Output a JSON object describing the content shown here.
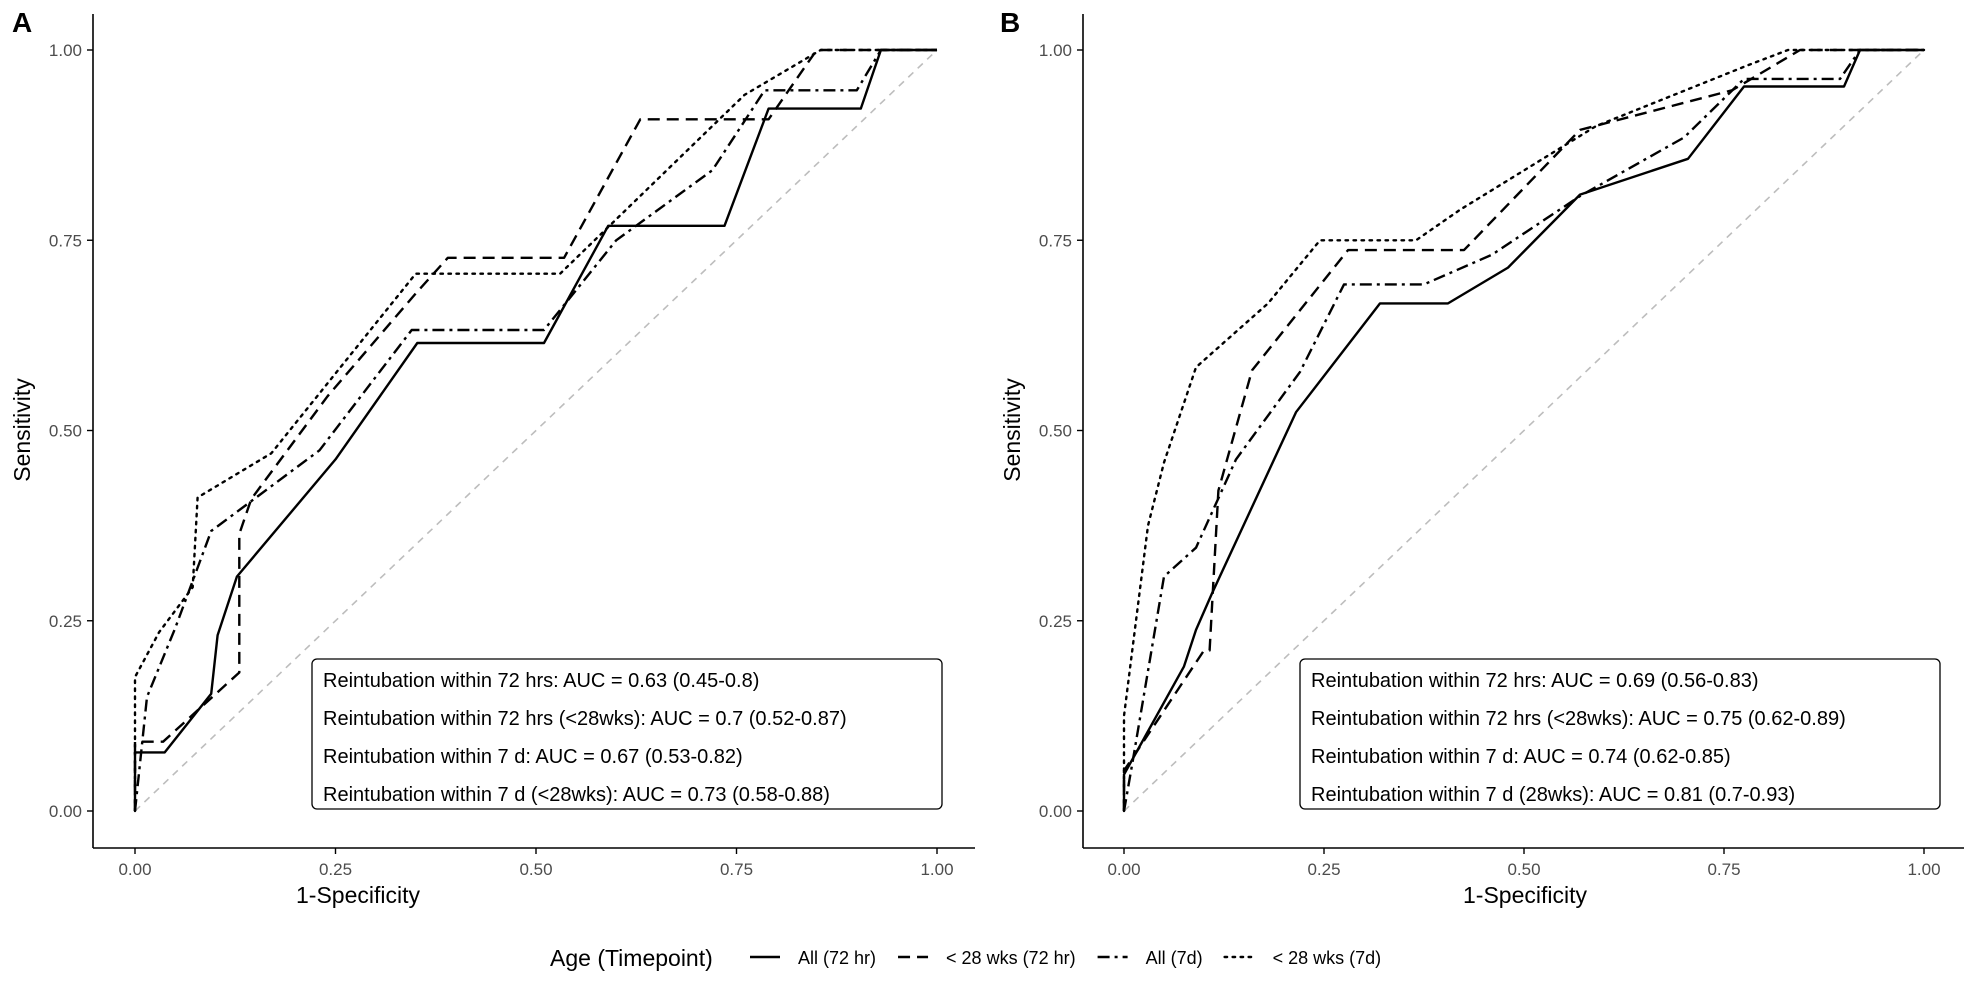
{
  "legend": {
    "title": "Age (Timepoint)",
    "items": [
      {
        "label": "All (72 hr)",
        "dash": "solid"
      },
      {
        "label": "< 28 wks (72 hr)",
        "dash": "dashed"
      },
      {
        "label": "All (7d)",
        "dash": "dashdot"
      },
      {
        "label": "< 28 wks (7d)",
        "dash": "dotted"
      }
    ]
  },
  "colors": {
    "lines": "#000000",
    "reference": "#bdbdbd",
    "axis": "#000000",
    "tick_text": "#4d4d4d"
  },
  "chart_data": [
    {
      "panel": "A",
      "type": "line",
      "xlabel": "1-Specificity",
      "ylabel": "Sensitivity",
      "xlim": [
        0,
        1
      ],
      "ylim": [
        0,
        1
      ],
      "xticks": [
        "0.00",
        "0.25",
        "0.50",
        "0.75",
        "1.00"
      ],
      "yticks": [
        "0.00",
        "0.25",
        "0.50",
        "0.75",
        "1.00"
      ],
      "grid": false,
      "reference_line": [
        [
          0,
          0
        ],
        [
          1,
          1
        ]
      ],
      "legend_box": [
        "Reintubation within 72 hrs: AUC = 0.63 (0.45-0.8)",
        "Reintubation within 72 hrs (<28wks): AUC = 0.7 (0.52-0.87)",
        "Reintubation within 7 d: AUC = 0.67 (0.53-0.82)",
        "Reintubation within 7 d (<28wks): AUC = 0.73 (0.58-0.88)"
      ],
      "series": [
        {
          "name": "All (72 hr)",
          "dash": "solid",
          "x": [
            0,
            0,
            0.037,
            0.095,
            0.103,
            0.127,
            0.25,
            0.352,
            0.51,
            0.59,
            0.735,
            0.79,
            0.905,
            0.93,
            1.0
          ],
          "y": [
            0,
            0.077,
            0.077,
            0.154,
            0.231,
            0.308,
            0.462,
            0.615,
            0.615,
            0.769,
            0.769,
            0.923,
            0.923,
            1.0,
            1.0
          ]
        },
        {
          "name": "< 28 wks (72 hr)",
          "dash": "dashed",
          "x": [
            0,
            0,
            0.035,
            0.13,
            0.13,
            0.145,
            0.24,
            0.35,
            0.39,
            0.535,
            0.63,
            0.79,
            0.85,
            0.89,
            1.0
          ],
          "y": [
            0,
            0.091,
            0.091,
            0.182,
            0.364,
            0.41,
            0.545,
            0.68,
            0.727,
            0.727,
            0.909,
            0.909,
            1.0,
            1.0,
            1.0
          ]
        },
        {
          "name": "All (7d)",
          "dash": "dashdot",
          "x": [
            0,
            0.015,
            0.05,
            0.095,
            0.23,
            0.345,
            0.51,
            0.6,
            0.72,
            0.785,
            0.805,
            0.9,
            0.93,
            1.0
          ],
          "y": [
            0,
            0.15,
            0.24,
            0.368,
            0.474,
            0.632,
            0.632,
            0.75,
            0.842,
            0.947,
            0.947,
            0.947,
            1.0,
            1.0
          ]
        },
        {
          "name": "< 28 wks (7d)",
          "dash": "dotted",
          "x": [
            0,
            0,
            0.03,
            0.072,
            0.078,
            0.17,
            0.35,
            0.53,
            0.76,
            0.855,
            1.0
          ],
          "y": [
            0,
            0.176,
            0.235,
            0.294,
            0.412,
            0.47,
            0.706,
            0.706,
            0.941,
            1.0,
            1.0
          ]
        }
      ]
    },
    {
      "panel": "B",
      "type": "line",
      "xlabel": "1-Specificity",
      "ylabel": "Sensitivity",
      "xlim": [
        0,
        1
      ],
      "ylim": [
        0,
        1
      ],
      "xticks": [
        "0.00",
        "0.25",
        "0.50",
        "0.75",
        "1.00"
      ],
      "yticks": [
        "0.00",
        "0.25",
        "0.50",
        "0.75",
        "1.00"
      ],
      "grid": false,
      "reference_line": [
        [
          0,
          0
        ],
        [
          1,
          1
        ]
      ],
      "legend_box": [
        "Reintubation within 72 hrs: AUC = 0.69 (0.56-0.83)",
        "Reintubation within 72 hrs (<28wks): AUC = 0.75 (0.62-0.89)",
        "Reintubation within 7 d: AUC = 0.74 (0.62-0.85)",
        "Reintubation within 7 d (28wks): AUC = 0.81 (0.7-0.93)"
      ],
      "series": [
        {
          "name": "All (72 hr)",
          "dash": "solid",
          "x": [
            0,
            0,
            0.075,
            0.09,
            0.11,
            0.215,
            0.32,
            0.405,
            0.48,
            0.57,
            0.705,
            0.775,
            0.9,
            0.92,
            1.0
          ],
          "y": [
            0,
            0.048,
            0.19,
            0.238,
            0.286,
            0.524,
            0.667,
            0.667,
            0.714,
            0.81,
            0.857,
            0.952,
            0.952,
            1.0,
            1.0
          ]
        },
        {
          "name": "< 28 wks (72 hr)",
          "dash": "dashed",
          "x": [
            0,
            0,
            0.1,
            0.107,
            0.118,
            0.16,
            0.28,
            0.38,
            0.425,
            0.57,
            0.76,
            0.845,
            0.915,
            1.0
          ],
          "y": [
            0,
            0.053,
            0.211,
            0.211,
            0.421,
            0.579,
            0.737,
            0.737,
            0.737,
            0.895,
            0.947,
            1.0,
            1.0,
            1.0
          ]
        },
        {
          "name": "All (7d)",
          "dash": "dashdot",
          "x": [
            0,
            0.01,
            0.05,
            0.09,
            0.14,
            0.22,
            0.275,
            0.375,
            0.46,
            0.57,
            0.7,
            0.775,
            0.895,
            0.92,
            1.0
          ],
          "y": [
            0,
            0.06,
            0.308,
            0.346,
            0.462,
            0.577,
            0.692,
            0.692,
            0.731,
            0.808,
            0.885,
            0.962,
            0.962,
            1.0,
            1.0
          ]
        },
        {
          "name": "< 28 wks (7d)",
          "dash": "dotted",
          "x": [
            0,
            0,
            0.03,
            0.05,
            0.09,
            0.18,
            0.245,
            0.365,
            0.42,
            0.59,
            0.78,
            0.83,
            1.0
          ],
          "y": [
            0,
            0.125,
            0.375,
            0.458,
            0.583,
            0.667,
            0.75,
            0.75,
            0.79,
            0.9,
            0.98,
            1.0,
            1.0
          ]
        }
      ]
    }
  ]
}
